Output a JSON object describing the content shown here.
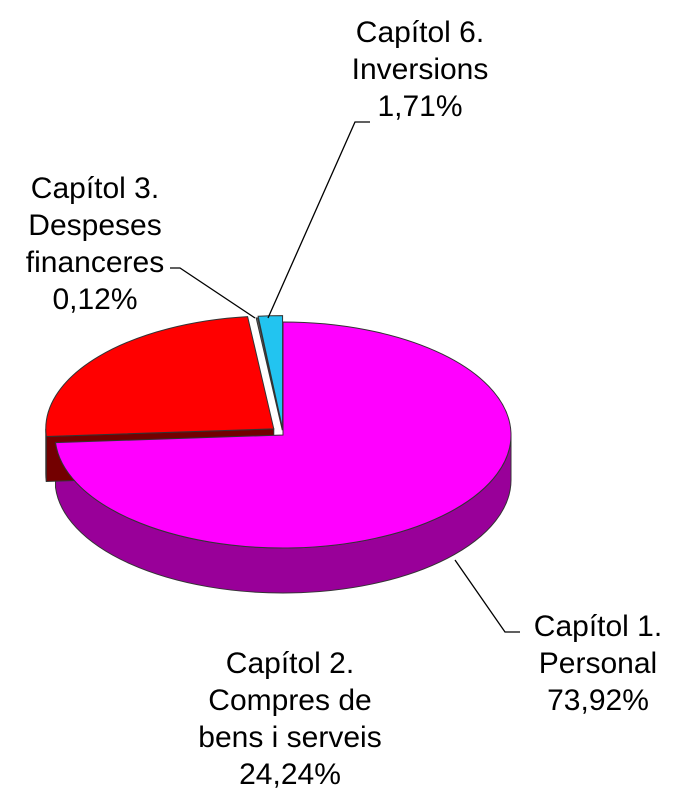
{
  "chart_data": {
    "type": "pie",
    "categories": [
      "Capítol 1.\nPersonal",
      "Capítol 2.\nCompres de\nbens i serveis",
      "Capítol 3.\nDespeses\nfinanceres",
      "Capítol 6.\nInversions"
    ],
    "values": [
      73.92,
      24.24,
      0.12,
      1.71
    ],
    "value_labels": [
      "73,92%",
      "24,24%",
      "0,12%",
      "1,71%"
    ],
    "colors": [
      "#ff00ff",
      "#ff0000",
      "#666666",
      "#22c4f0"
    ]
  }
}
